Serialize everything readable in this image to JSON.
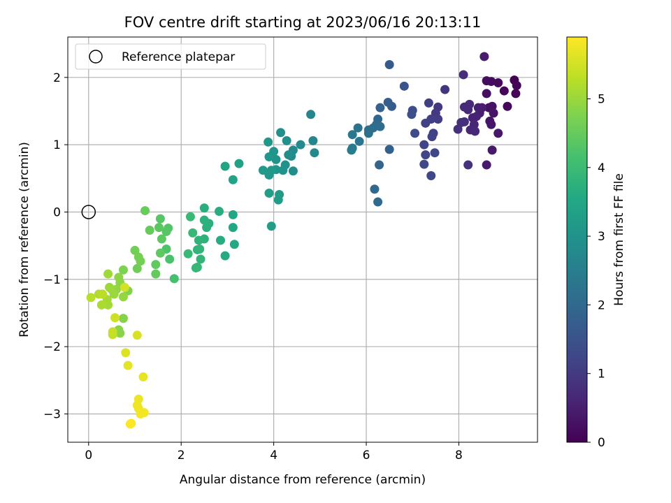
{
  "chart_data": {
    "type": "scatter",
    "title": "FOV centre drift starting at 2023/06/16 20:13:11",
    "xlabel": "Angular distance from reference (arcmin)",
    "ylabel": "Rotation from reference (arcmin)",
    "xlim": [
      -0.45,
      9.7
    ],
    "ylim": [
      -3.42,
      2.6
    ],
    "x_ticks": [
      0,
      2,
      4,
      6,
      8
    ],
    "y_ticks": [
      -3,
      -2,
      -1,
      0,
      1,
      2
    ],
    "grid": true,
    "legend": {
      "placement": "top-left",
      "entries": [
        "Reference platepar"
      ]
    },
    "reference_point": {
      "x": 0,
      "y": 0,
      "label": "Reference platepar"
    },
    "colorbar": {
      "label": "Hours from first FF file",
      "colormap": "viridis",
      "range": [
        0,
        5.9
      ],
      "ticks": [
        0,
        1,
        2,
        3,
        4,
        5
      ]
    },
    "series": [
      {
        "points": [
          {
            "x": 9.2,
            "y": 1.96,
            "h": 0.0
          },
          {
            "x": 9.25,
            "y": 1.88,
            "h": 0.05
          },
          {
            "x": 9.23,
            "y": 1.76,
            "h": 0.08
          },
          {
            "x": 8.98,
            "y": 1.8,
            "h": 0.1
          },
          {
            "x": 9.05,
            "y": 1.57,
            "h": 0.12
          },
          {
            "x": 8.85,
            "y": 1.92,
            "h": 0.15
          },
          {
            "x": 8.7,
            "y": 1.94,
            "h": 0.18
          },
          {
            "x": 8.6,
            "y": 1.95,
            "h": 0.2
          },
          {
            "x": 8.6,
            "y": 1.76,
            "h": 0.22
          },
          {
            "x": 8.65,
            "y": 1.55,
            "h": 0.25
          },
          {
            "x": 8.72,
            "y": 1.57,
            "h": 0.28
          },
          {
            "x": 8.75,
            "y": 1.47,
            "h": 0.3
          },
          {
            "x": 8.67,
            "y": 1.35,
            "h": 0.32
          },
          {
            "x": 8.7,
            "y": 1.3,
            "h": 0.35
          },
          {
            "x": 8.85,
            "y": 1.17,
            "h": 0.38
          },
          {
            "x": 8.72,
            "y": 0.92,
            "h": 0.4
          },
          {
            "x": 8.6,
            "y": 0.7,
            "h": 0.42
          },
          {
            "x": 8.55,
            "y": 2.31,
            "h": 0.45
          },
          {
            "x": 8.5,
            "y": 1.55,
            "h": 0.48
          },
          {
            "x": 8.45,
            "y": 1.47,
            "h": 0.5
          },
          {
            "x": 8.42,
            "y": 1.55,
            "h": 0.52
          },
          {
            "x": 8.38,
            "y": 1.42,
            "h": 0.55
          },
          {
            "x": 8.3,
            "y": 1.4,
            "h": 0.58
          },
          {
            "x": 8.33,
            "y": 1.3,
            "h": 0.6
          },
          {
            "x": 8.25,
            "y": 1.22,
            "h": 0.62
          },
          {
            "x": 8.35,
            "y": 1.2,
            "h": 0.65
          },
          {
            "x": 8.2,
            "y": 1.52,
            "h": 0.68
          },
          {
            "x": 8.23,
            "y": 1.6,
            "h": 0.7
          },
          {
            "x": 8.12,
            "y": 1.56,
            "h": 0.72
          },
          {
            "x": 8.1,
            "y": 2.04,
            "h": 0.75
          },
          {
            "x": 8.12,
            "y": 1.34,
            "h": 0.78
          },
          {
            "x": 8.05,
            "y": 1.33,
            "h": 0.8
          },
          {
            "x": 7.98,
            "y": 1.23,
            "h": 0.82
          },
          {
            "x": 8.2,
            "y": 0.7,
            "h": 0.85
          },
          {
            "x": 7.7,
            "y": 1.82,
            "h": 0.9
          },
          {
            "x": 7.55,
            "y": 1.56,
            "h": 0.95
          },
          {
            "x": 7.5,
            "y": 1.47,
            "h": 1.0
          },
          {
            "x": 7.55,
            "y": 1.38,
            "h": 1.05
          },
          {
            "x": 7.4,
            "y": 1.38,
            "h": 1.08
          },
          {
            "x": 7.35,
            "y": 1.62,
            "h": 1.1
          },
          {
            "x": 7.28,
            "y": 1.32,
            "h": 1.12
          },
          {
            "x": 7.45,
            "y": 1.17,
            "h": 1.15
          },
          {
            "x": 7.42,
            "y": 1.12,
            "h": 1.17
          },
          {
            "x": 7.25,
            "y": 1.0,
            "h": 1.2
          },
          {
            "x": 7.48,
            "y": 0.88,
            "h": 1.22
          },
          {
            "x": 7.28,
            "y": 0.85,
            "h": 1.25
          },
          {
            "x": 7.25,
            "y": 0.71,
            "h": 1.28
          },
          {
            "x": 7.4,
            "y": 0.54,
            "h": 1.3
          },
          {
            "x": 7.05,
            "y": 1.17,
            "h": 1.35
          },
          {
            "x": 7.0,
            "y": 1.51,
            "h": 1.4
          },
          {
            "x": 6.98,
            "y": 1.45,
            "h": 1.45
          },
          {
            "x": 6.82,
            "y": 1.87,
            "h": 1.55
          },
          {
            "x": 6.5,
            "y": 2.19,
            "h": 1.65
          },
          {
            "x": 6.55,
            "y": 1.57,
            "h": 1.7
          },
          {
            "x": 6.47,
            "y": 1.63,
            "h": 1.75
          },
          {
            "x": 6.5,
            "y": 0.93,
            "h": 1.8
          },
          {
            "x": 6.3,
            "y": 1.55,
            "h": 1.85
          },
          {
            "x": 6.28,
            "y": 0.7,
            "h": 1.9
          },
          {
            "x": 6.25,
            "y": 1.38,
            "h": 1.95
          },
          {
            "x": 6.18,
            "y": 0.34,
            "h": 2.0
          },
          {
            "x": 6.25,
            "y": 0.15,
            "h": 2.02
          },
          {
            "x": 6.22,
            "y": 1.3,
            "h": 2.05
          },
          {
            "x": 6.3,
            "y": 1.27,
            "h": 2.08
          },
          {
            "x": 6.15,
            "y": 1.25,
            "h": 2.1
          },
          {
            "x": 6.05,
            "y": 1.22,
            "h": 2.15
          },
          {
            "x": 6.05,
            "y": 1.17,
            "h": 2.18
          },
          {
            "x": 5.82,
            "y": 1.25,
            "h": 2.25
          },
          {
            "x": 5.85,
            "y": 1.05,
            "h": 2.3
          },
          {
            "x": 5.7,
            "y": 1.15,
            "h": 2.35
          },
          {
            "x": 5.7,
            "y": 0.95,
            "h": 2.4
          },
          {
            "x": 5.68,
            "y": 0.92,
            "h": 2.45
          },
          {
            "x": 4.8,
            "y": 1.45,
            "h": 2.7
          },
          {
            "x": 4.85,
            "y": 1.06,
            "h": 2.72
          },
          {
            "x": 4.88,
            "y": 0.88,
            "h": 2.75
          },
          {
            "x": 4.58,
            "y": 1.0,
            "h": 2.78
          },
          {
            "x": 4.42,
            "y": 0.92,
            "h": 2.8
          },
          {
            "x": 4.38,
            "y": 0.83,
            "h": 2.82
          },
          {
            "x": 4.42,
            "y": 0.61,
            "h": 2.85
          },
          {
            "x": 4.32,
            "y": 0.85,
            "h": 2.88
          },
          {
            "x": 4.28,
            "y": 1.06,
            "h": 2.9
          },
          {
            "x": 4.15,
            "y": 1.18,
            "h": 2.92
          },
          {
            "x": 4.25,
            "y": 0.7,
            "h": 2.95
          },
          {
            "x": 4.2,
            "y": 0.62,
            "h": 2.97
          },
          {
            "x": 4.05,
            "y": 0.78,
            "h": 3.0
          },
          {
            "x": 4.0,
            "y": 0.9,
            "h": 3.02
          },
          {
            "x": 4.05,
            "y": 0.63,
            "h": 3.05
          },
          {
            "x": 3.9,
            "y": 0.82,
            "h": 3.08
          },
          {
            "x": 3.88,
            "y": 1.04,
            "h": 3.1
          },
          {
            "x": 3.9,
            "y": 0.55,
            "h": 3.12
          },
          {
            "x": 3.95,
            "y": 0.62,
            "h": 3.15
          },
          {
            "x": 3.77,
            "y": 0.62,
            "h": 3.17
          },
          {
            "x": 4.12,
            "y": 0.26,
            "h": 3.2
          },
          {
            "x": 4.1,
            "y": 0.18,
            "h": 3.22
          },
          {
            "x": 3.9,
            "y": 0.28,
            "h": 3.25
          },
          {
            "x": 3.95,
            "y": -0.21,
            "h": 3.28
          },
          {
            "x": 3.25,
            "y": 0.72,
            "h": 3.35
          },
          {
            "x": 3.12,
            "y": 0.48,
            "h": 3.4
          },
          {
            "x": 2.95,
            "y": 0.68,
            "h": 3.45
          },
          {
            "x": 3.12,
            "y": -0.04,
            "h": 3.5
          },
          {
            "x": 3.12,
            "y": -0.23,
            "h": 3.52
          },
          {
            "x": 3.15,
            "y": -0.48,
            "h": 3.55
          },
          {
            "x": 2.95,
            "y": -0.65,
            "h": 3.6
          },
          {
            "x": 2.85,
            "y": -0.42,
            "h": 3.62
          },
          {
            "x": 2.82,
            "y": 0.01,
            "h": 3.65
          },
          {
            "x": 2.5,
            "y": 0.06,
            "h": 3.7
          },
          {
            "x": 2.6,
            "y": -0.17,
            "h": 3.72
          },
          {
            "x": 2.55,
            "y": -0.23,
            "h": 3.74
          },
          {
            "x": 2.5,
            "y": -0.12,
            "h": 3.76
          },
          {
            "x": 2.5,
            "y": -0.4,
            "h": 3.78
          },
          {
            "x": 2.38,
            "y": -0.42,
            "h": 3.8
          },
          {
            "x": 2.35,
            "y": -0.56,
            "h": 3.82
          },
          {
            "x": 2.4,
            "y": -0.55,
            "h": 3.84
          },
          {
            "x": 2.42,
            "y": -0.7,
            "h": 3.86
          },
          {
            "x": 2.32,
            "y": -0.83,
            "h": 3.88
          },
          {
            "x": 2.35,
            "y": -0.82,
            "h": 3.9
          },
          {
            "x": 2.25,
            "y": -0.31,
            "h": 3.92
          },
          {
            "x": 2.15,
            "y": -0.62,
            "h": 3.94
          },
          {
            "x": 2.2,
            "y": -0.07,
            "h": 3.96
          },
          {
            "x": 1.85,
            "y": -0.99,
            "h": 4.15
          },
          {
            "x": 1.75,
            "y": -0.7,
            "h": 4.2
          },
          {
            "x": 1.68,
            "y": -0.55,
            "h": 4.25
          },
          {
            "x": 1.72,
            "y": -0.24,
            "h": 4.3
          },
          {
            "x": 1.68,
            "y": -0.29,
            "h": 4.32
          },
          {
            "x": 1.55,
            "y": -0.1,
            "h": 4.35
          },
          {
            "x": 1.52,
            "y": -0.23,
            "h": 4.38
          },
          {
            "x": 1.58,
            "y": -0.4,
            "h": 4.4
          },
          {
            "x": 1.55,
            "y": -0.61,
            "h": 4.42
          },
          {
            "x": 1.45,
            "y": -0.78,
            "h": 4.45
          },
          {
            "x": 1.45,
            "y": -0.92,
            "h": 4.48
          },
          {
            "x": 1.32,
            "y": -0.27,
            "h": 4.5
          },
          {
            "x": 1.22,
            "y": 0.02,
            "h": 4.52
          },
          {
            "x": 1.05,
            "y": -0.84,
            "h": 4.6
          },
          {
            "x": 1.0,
            "y": -0.57,
            "h": 4.62
          },
          {
            "x": 1.12,
            "y": -0.73,
            "h": 4.65
          },
          {
            "x": 1.08,
            "y": -0.67,
            "h": 4.67
          },
          {
            "x": 0.75,
            "y": -0.86,
            "h": 4.75
          },
          {
            "x": 0.85,
            "y": -1.17,
            "h": 4.78
          },
          {
            "x": 0.75,
            "y": -1.58,
            "h": 4.8
          },
          {
            "x": 0.65,
            "y": -1.75,
            "h": 4.83
          },
          {
            "x": 0.68,
            "y": -1.8,
            "h": 4.85
          },
          {
            "x": 0.65,
            "y": -0.97,
            "h": 4.88
          },
          {
            "x": 0.68,
            "y": -1.05,
            "h": 4.9
          },
          {
            "x": 0.6,
            "y": -1.15,
            "h": 4.92
          },
          {
            "x": 0.75,
            "y": -1.26,
            "h": 4.95
          },
          {
            "x": 0.5,
            "y": -1.15,
            "h": 4.97
          },
          {
            "x": 0.55,
            "y": -1.22,
            "h": 5.0
          },
          {
            "x": 0.45,
            "y": -1.12,
            "h": 5.02
          },
          {
            "x": 0.42,
            "y": -0.92,
            "h": 5.05
          },
          {
            "x": 0.42,
            "y": -1.38,
            "h": 5.08
          },
          {
            "x": 0.4,
            "y": -1.3,
            "h": 5.1
          },
          {
            "x": 0.28,
            "y": -1.38,
            "h": 5.15
          },
          {
            "x": 0.22,
            "y": -1.22,
            "h": 5.2
          },
          {
            "x": 0.05,
            "y": -1.27,
            "h": 5.25
          },
          {
            "x": 0.3,
            "y": -1.22,
            "h": 5.28
          },
          {
            "x": 0.52,
            "y": -1.82,
            "h": 5.35
          },
          {
            "x": 0.52,
            "y": -1.78,
            "h": 5.4
          },
          {
            "x": 0.57,
            "y": -1.57,
            "h": 5.45
          },
          {
            "x": 0.78,
            "y": -1.12,
            "h": 5.5
          },
          {
            "x": 1.05,
            "y": -1.83,
            "h": 5.55
          },
          {
            "x": 0.8,
            "y": -2.09,
            "h": 5.6
          },
          {
            "x": 0.85,
            "y": -2.28,
            "h": 5.65
          },
          {
            "x": 1.18,
            "y": -2.45,
            "h": 5.7
          },
          {
            "x": 1.08,
            "y": -2.78,
            "h": 5.73
          },
          {
            "x": 1.05,
            "y": -2.87,
            "h": 5.76
          },
          {
            "x": 1.08,
            "y": -2.92,
            "h": 5.78
          },
          {
            "x": 1.2,
            "y": -2.98,
            "h": 5.8
          },
          {
            "x": 1.12,
            "y": -3.0,
            "h": 5.82
          },
          {
            "x": 0.92,
            "y": -3.14,
            "h": 5.85
          },
          {
            "x": 0.9,
            "y": -3.15,
            "h": 5.88
          }
        ]
      }
    ]
  }
}
